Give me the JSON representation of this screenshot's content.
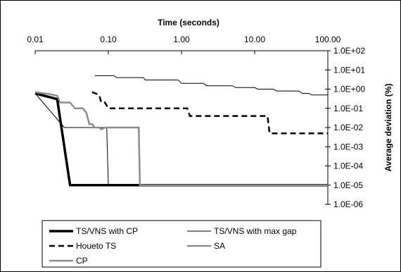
{
  "chart_data": {
    "type": "line",
    "title": "Time (seconds)",
    "xlabel": "Time (seconds)",
    "ylabel": "Average deviation (%)",
    "x_scale": "log",
    "y_scale": "log",
    "xlim": [
      0.01,
      100
    ],
    "ylim": [
      1e-06,
      100
    ],
    "x_ticks": [
      {
        "value": 0.01,
        "label": "0.01"
      },
      {
        "value": 0.1,
        "label": "0.10"
      },
      {
        "value": 1,
        "label": "1.00"
      },
      {
        "value": 10,
        "label": "10.00"
      },
      {
        "value": 100,
        "label": "100.00"
      }
    ],
    "y_ticks": [
      {
        "value": 100,
        "label": "1.0E+02"
      },
      {
        "value": 10,
        "label": "1.0E+01"
      },
      {
        "value": 1,
        "label": "1.0E+00"
      },
      {
        "value": 0.1,
        "label": "1.0E-01"
      },
      {
        "value": 0.01,
        "label": "1.0E-02"
      },
      {
        "value": 0.001,
        "label": "1.0E-03"
      },
      {
        "value": 0.0001,
        "label": "1.0E-04"
      },
      {
        "value": 1e-05,
        "label": "1.0E-05"
      },
      {
        "value": 1e-06,
        "label": "1.0E-06"
      }
    ],
    "grid": false,
    "legend_position": "bottom",
    "series": [
      {
        "name": "TS/VNS with CP",
        "color": "#000000",
        "style": "solid-thick",
        "points": [
          [
            0.01,
            0.6
          ],
          [
            0.02,
            0.3
          ],
          [
            0.03,
            1e-05
          ],
          [
            100,
            1e-05
          ]
        ]
      },
      {
        "name": "TS/VNS with max gap",
        "color": "#000000",
        "style": "solid-thin",
        "points": [
          [
            0.01,
            0.6
          ],
          [
            0.025,
            0.01
          ],
          [
            0.095,
            0.01
          ],
          [
            0.1,
            1e-05
          ],
          [
            100,
            1e-05
          ]
        ]
      },
      {
        "name": "Houeto TS",
        "color": "#000000",
        "style": "dashed",
        "points": [
          [
            0.06,
            0.7
          ],
          [
            0.075,
            0.5
          ],
          [
            0.08,
            0.2
          ],
          [
            0.09,
            0.2
          ],
          [
            0.1,
            0.1
          ],
          [
            1.2,
            0.1
          ],
          [
            1.3,
            0.04
          ],
          [
            15,
            0.04
          ],
          [
            16,
            0.005
          ],
          [
            100,
            0.005
          ]
        ]
      },
      {
        "name": "SA",
        "color": "#000000",
        "style": "solid-thin",
        "points": [
          [
            0.065,
            5
          ],
          [
            0.12,
            5
          ],
          [
            0.13,
            4
          ],
          [
            0.3,
            4
          ],
          [
            0.32,
            3
          ],
          [
            0.9,
            3
          ],
          [
            1,
            2
          ],
          [
            2,
            2
          ],
          [
            2.2,
            1.5
          ],
          [
            5,
            1.5
          ],
          [
            5.5,
            1.2
          ],
          [
            10,
            1.2
          ],
          [
            11,
            1
          ],
          [
            18,
            1
          ],
          [
            20,
            0.8
          ],
          [
            40,
            0.8
          ],
          [
            45,
            0.6
          ],
          [
            55,
            0.6
          ],
          [
            60,
            0.5
          ],
          [
            100,
            0.5
          ]
        ]
      },
      {
        "name": "CP",
        "color": "#8c8c8c",
        "style": "solid-medium",
        "points": [
          [
            0.01,
            0.7
          ],
          [
            0.016,
            0.55
          ],
          [
            0.02,
            0.45
          ],
          [
            0.022,
            0.2
          ],
          [
            0.03,
            0.2
          ],
          [
            0.035,
            0.1
          ],
          [
            0.045,
            0.1
          ],
          [
            0.05,
            0.06
          ],
          [
            0.055,
            0.015
          ],
          [
            0.06,
            0.015
          ],
          [
            0.065,
            0.01
          ],
          [
            0.075,
            0.01
          ],
          [
            0.08,
            0.008
          ],
          [
            0.09,
            0.01
          ],
          [
            0.26,
            0.01
          ],
          [
            0.27,
            1e-05
          ],
          [
            100,
            1e-05
          ]
        ]
      }
    ]
  }
}
